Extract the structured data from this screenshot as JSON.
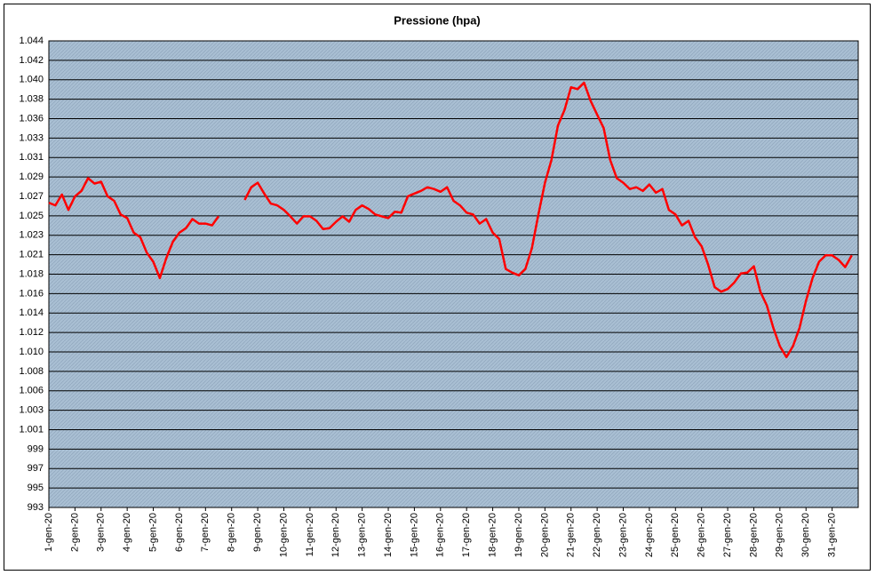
{
  "chart_data": {
    "type": "line",
    "title": "Pressione (hpa)",
    "categories": [
      "1-gen-20",
      null,
      null,
      null,
      "2-gen-20",
      null,
      null,
      null,
      "3-gen-20",
      null,
      null,
      null,
      "4-gen-20",
      null,
      null,
      null,
      "5-gen-20",
      null,
      null,
      null,
      "6-gen-20",
      null,
      null,
      null,
      "7-gen-20",
      null,
      null,
      null,
      "8-gen-20",
      null,
      null,
      null,
      "9-gen-20",
      null,
      null,
      null,
      "10-gen-20",
      null,
      null,
      null,
      "11-gen-20",
      null,
      null,
      null,
      "12-gen-20",
      null,
      null,
      null,
      "13-gen-20",
      null,
      null,
      null,
      "14-gen-20",
      null,
      null,
      null,
      "15-gen-20",
      null,
      null,
      null,
      "16-gen-20",
      null,
      null,
      null,
      "17-gen-20",
      null,
      null,
      null,
      "18-gen-20",
      null,
      null,
      null,
      "19-gen-20",
      null,
      null,
      null,
      "20-gen-20",
      null,
      null,
      null,
      "21-gen-20",
      null,
      null,
      null,
      "22-gen-20",
      null,
      null,
      null,
      "23-gen-20",
      null,
      null,
      null,
      "24-gen-20",
      null,
      null,
      null,
      "25-gen-20",
      null,
      null,
      null,
      "26-gen-20",
      null,
      null,
      null,
      "27-gen-20",
      null,
      null,
      null,
      "28-gen-20",
      null,
      null,
      null,
      "29-gen-20",
      null,
      null,
      null,
      "30-gen-20",
      null,
      null,
      null,
      "31-gen-20",
      null,
      null,
      null
    ],
    "series": [
      {
        "color": "#ff0000",
        "values": [
          1026.3,
          1026.0,
          1027.2,
          1025.5,
          1027.0,
          1027.6,
          1029.0,
          1028.4,
          1028.6,
          1027.0,
          1026.5,
          1025.0,
          1024.6,
          1023.0,
          1022.5,
          1020.8,
          1019.8,
          1018.0,
          1020.2,
          1022.0,
          1023.0,
          1023.5,
          1024.5,
          1024.0,
          1024.0,
          1023.8,
          1024.8,
          null,
          null,
          null,
          1026.6,
          1028.0,
          1028.5,
          1027.3,
          1026.2,
          1026.0,
          1025.5,
          1024.8,
          1024.0,
          1024.8,
          1024.8,
          1024.3,
          1023.4,
          1023.5,
          1024.2,
          1024.8,
          1024.2,
          1025.5,
          1026.0,
          1025.6,
          1025.0,
          1024.8,
          1024.6,
          1025.3,
          1025.2,
          1027.0,
          1027.3,
          1027.6,
          1028.0,
          1027.8,
          1027.5,
          1028.0,
          1026.5,
          1026.0,
          1025.2,
          1025.0,
          1024.0,
          1024.5,
          1023.0,
          1022.3,
          1019.0,
          1018.6,
          1018.3,
          1019.0,
          1021.3,
          1025.0,
          1028.5,
          1031.0,
          1034.8,
          1036.5,
          1039.0,
          1038.8,
          1039.5,
          1037.5,
          1036.0,
          1034.5,
          1031.0,
          1029.0,
          1028.5,
          1027.8,
          1028.0,
          1027.6,
          1028.3,
          1027.4,
          1027.8,
          1025.5,
          1025.0,
          1023.8,
          1024.3,
          1022.5,
          1021.5,
          1019.5,
          1017.0,
          1016.5,
          1016.8,
          1017.5,
          1018.5,
          1018.6,
          1019.3,
          1016.5,
          1015.0,
          1012.5,
          1010.5,
          1009.3,
          1010.5,
          1012.5,
          1015.5,
          1018.0,
          1019.8,
          1020.5,
          1020.5,
          1020.0,
          1019.2,
          1020.5
        ]
      }
    ],
    "ylim": [
      992.75,
      1044.11
    ],
    "yticks": [
      {
        "value": 992.75,
        "label": "993"
      },
      {
        "value": 994.89,
        "label": "995"
      },
      {
        "value": 997.03,
        "label": "997"
      },
      {
        "value": 999.17,
        "label": "999"
      },
      {
        "value": 1001.31,
        "label": "1.001"
      },
      {
        "value": 1003.45,
        "label": "1.003"
      },
      {
        "value": 1005.59,
        "label": "1.006"
      },
      {
        "value": 1007.73,
        "label": "1.008"
      },
      {
        "value": 1009.87,
        "label": "1.010"
      },
      {
        "value": 1012.01,
        "label": "1.012"
      },
      {
        "value": 1014.15,
        "label": "1.014"
      },
      {
        "value": 1016.29,
        "label": "1.016"
      },
      {
        "value": 1018.43,
        "label": "1.018"
      },
      {
        "value": 1020.57,
        "label": "1.021"
      },
      {
        "value": 1022.71,
        "label": "1.023"
      },
      {
        "value": 1024.85,
        "label": "1.025"
      },
      {
        "value": 1026.99,
        "label": "1.027"
      },
      {
        "value": 1029.13,
        "label": "1.029"
      },
      {
        "value": 1031.27,
        "label": "1.031"
      },
      {
        "value": 1033.41,
        "label": "1.033"
      },
      {
        "value": 1035.55,
        "label": "1.036"
      },
      {
        "value": 1037.69,
        "label": "1.038"
      },
      {
        "value": 1039.83,
        "label": "1.040"
      },
      {
        "value": 1041.97,
        "label": "1.042"
      },
      {
        "value": 1044.11,
        "label": "1.044"
      }
    ],
    "grid": true
  }
}
